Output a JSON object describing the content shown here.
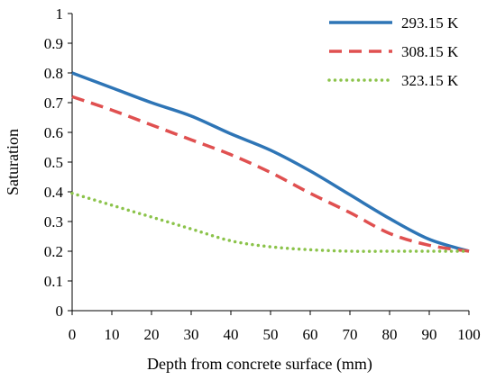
{
  "chart_data": {
    "type": "line",
    "xlabel": "Depth from concrete surface (mm)",
    "ylabel": "Saturation",
    "xlim": [
      0,
      100
    ],
    "ylim": [
      0,
      1
    ],
    "xticks": [
      "0",
      "10",
      "20",
      "30",
      "40",
      "50",
      "60",
      "70",
      "80",
      "90",
      "100"
    ],
    "yticks": [
      "0",
      "0.1",
      "0.2",
      "0.3",
      "0.4",
      "0.5",
      "0.6",
      "0.7",
      "0.8",
      "0.9",
      "1"
    ],
    "grid": false,
    "legend_position": "top-right",
    "x": [
      0,
      10,
      20,
      30,
      40,
      50,
      60,
      70,
      80,
      90,
      100
    ],
    "series": [
      {
        "name": "293.15 K",
        "color": "#2e75b6",
        "style": "solid",
        "values": [
          0.8,
          0.75,
          0.7,
          0.655,
          0.595,
          0.54,
          0.47,
          0.39,
          0.31,
          0.24,
          0.2
        ]
      },
      {
        "name": "308.15 K",
        "color": "#e05050",
        "style": "dashed",
        "values": [
          0.72,
          0.675,
          0.625,
          0.575,
          0.525,
          0.465,
          0.395,
          0.33,
          0.26,
          0.22,
          0.2
        ]
      },
      {
        "name": "323.15 K",
        "color": "#8bc34a",
        "style": "dotted",
        "values": [
          0.395,
          0.355,
          0.315,
          0.275,
          0.235,
          0.215,
          0.205,
          0.2,
          0.2,
          0.2,
          0.2
        ]
      }
    ]
  }
}
